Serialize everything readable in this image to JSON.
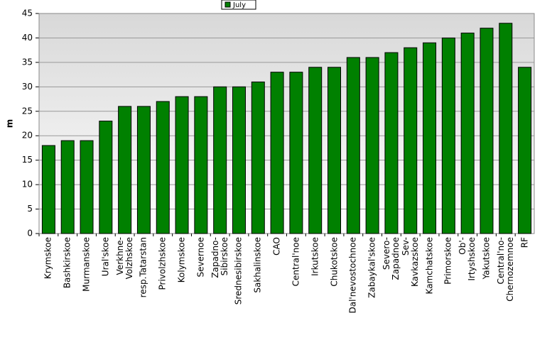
{
  "chart_data": {
    "type": "bar",
    "y_label": "m",
    "categories": [
      "Krymskoe",
      "Bashkirskoe",
      "Murmanskoe",
      "Ural'skoe",
      "Verkhne-\nVolzhskoe",
      "resp.Tatarstan",
      "Privolzhskoe",
      "Kolymskoe",
      "Severnoe",
      "Zapadno-\nSibirskoe",
      "Srednesibirskoe",
      "Sakhalinskoe",
      "CAO",
      "Central'noe",
      "Irkutskoe",
      "Chukotskoe",
      "Dal'nevostochnoe",
      "Zabaykal'skoe",
      "Severo-\nZapadnoe",
      "Sev-\nKavkazskoe",
      "Kamchatskoe",
      "Primorskoe",
      "Ob'-\nIrtyshskoe",
      "Yakutskoe",
      "Central'no-\nChernozemnoe",
      "RF"
    ],
    "series": [
      {
        "name": "July",
        "color": "#008000",
        "values": [
          18,
          19,
          19,
          23,
          26,
          26,
          27,
          28,
          28,
          30,
          30,
          31,
          33,
          33,
          34,
          34,
          36,
          36,
          37,
          38,
          39,
          40,
          41,
          42,
          43,
          34
        ]
      }
    ],
    "ylim": [
      0,
      45
    ],
    "yticks": [
      0,
      5,
      10,
      15,
      20,
      25,
      30,
      35,
      40,
      45
    ],
    "grid": true,
    "legend": "top"
  }
}
